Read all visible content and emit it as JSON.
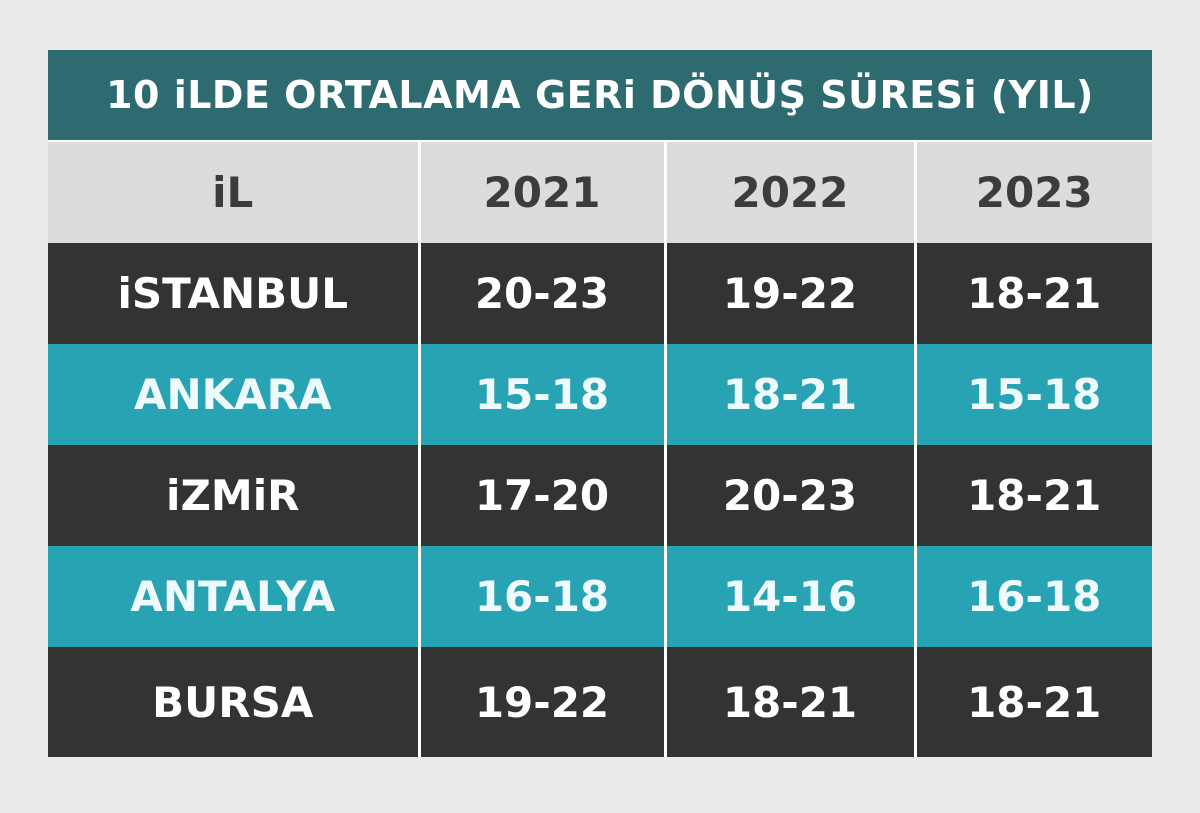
{
  "title": "10 iLDE ORTALAMA GERi DÖNÜŞ SÜRESi (YIL)",
  "table": {
    "header": [
      "iL",
      "2021",
      "2022",
      "2023"
    ],
    "rows": [
      [
        "iSTANBUL",
        "20-23",
        "19-22",
        "18-21"
      ],
      [
        "ANKARA",
        "15-18",
        "18-21",
        "15-18"
      ],
      [
        "iZMiR",
        "17-20",
        "20-23",
        "18-21"
      ],
      [
        "ANTALYA",
        "16-18",
        "14-16",
        "16-18"
      ],
      [
        "BURSA",
        "19-22",
        "18-21",
        "18-21"
      ]
    ]
  }
}
